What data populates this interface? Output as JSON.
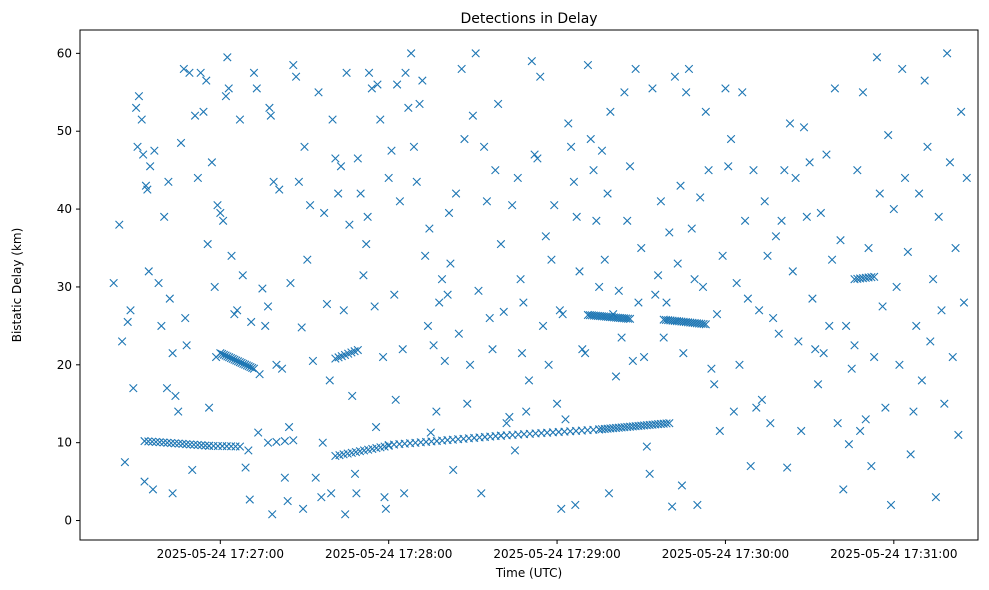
{
  "chart_data": {
    "type": "scatter",
    "title": "Detections in Delay",
    "xlabel": "Time (UTC)",
    "ylabel": "Bistatic Delay (km)",
    "marker": "x",
    "color": "#1f77b4",
    "x_unit": "seconds since 2025-05-24 17:26:00 UTC",
    "xlim": [
      10,
      330
    ],
    "ylim": [
      -2.5,
      63
    ],
    "xticks": [
      {
        "value": 60,
        "label": "2025-05-24 17:27:00"
      },
      {
        "value": 120,
        "label": "2025-05-24 17:28:00"
      },
      {
        "value": 180,
        "label": "2025-05-24 17:29:00"
      },
      {
        "value": 240,
        "label": "2025-05-24 17:30:00"
      },
      {
        "value": 300,
        "label": "2025-05-24 17:31:00"
      }
    ],
    "yticks": [
      0,
      10,
      20,
      30,
      40,
      50,
      60
    ],
    "tracks": [
      {
        "name": "track-1",
        "t_start": 33,
        "t_end": 56,
        "delay_start": 10.2,
        "delay_end": 9.6,
        "count": 18
      },
      {
        "name": "track-2",
        "t_start": 56,
        "t_end": 67,
        "delay_start": 9.6,
        "delay_end": 9.5,
        "count": 8
      },
      {
        "name": "track-3",
        "t_start": 77,
        "t_end": 86,
        "delay_start": 10.0,
        "delay_end": 10.3,
        "count": 4
      },
      {
        "name": "track-4",
        "t_start": 101,
        "t_end": 120,
        "delay_start": 8.3,
        "delay_end": 9.6,
        "count": 14
      },
      {
        "name": "track-5",
        "t_start": 120,
        "t_end": 160,
        "delay_start": 9.7,
        "delay_end": 10.9,
        "count": 22
      },
      {
        "name": "track-6",
        "t_start": 160,
        "t_end": 195,
        "delay_start": 10.9,
        "delay_end": 11.7,
        "count": 18
      },
      {
        "name": "track-7",
        "t_start": 195,
        "t_end": 220,
        "delay_start": 11.7,
        "delay_end": 12.5,
        "count": 26
      },
      {
        "name": "track-8",
        "t_start": 60,
        "t_end": 72,
        "delay_start": 21.5,
        "delay_end": 19.5,
        "count": 20
      },
      {
        "name": "track-9",
        "t_start": 101,
        "t_end": 109,
        "delay_start": 20.8,
        "delay_end": 21.9,
        "count": 8
      },
      {
        "name": "track-10",
        "t_start": 191,
        "t_end": 206,
        "delay_start": 26.4,
        "delay_end": 25.9,
        "count": 22
      },
      {
        "name": "track-11",
        "t_start": 218,
        "t_end": 233,
        "delay_start": 25.8,
        "delay_end": 25.2,
        "count": 20
      },
      {
        "name": "track-12",
        "t_start": 286,
        "t_end": 293,
        "delay_start": 31.0,
        "delay_end": 31.3,
        "count": 8
      }
    ],
    "clutter_points": [
      [
        22,
        30.5
      ],
      [
        24,
        38
      ],
      [
        25,
        23
      ],
      [
        26,
        7.5
      ],
      [
        27,
        25.5
      ],
      [
        28,
        27
      ],
      [
        29,
        17
      ],
      [
        30,
        53
      ],
      [
        30.5,
        48
      ],
      [
        31,
        54.5
      ],
      [
        32,
        51.5
      ],
      [
        32.5,
        47
      ],
      [
        33,
        5
      ],
      [
        33.5,
        43
      ],
      [
        34,
        42.5
      ],
      [
        34.5,
        32
      ],
      [
        35,
        45.5
      ],
      [
        36,
        4
      ],
      [
        36.5,
        47.5
      ],
      [
        38,
        30.5
      ],
      [
        39,
        25
      ],
      [
        40,
        39
      ],
      [
        41,
        17
      ],
      [
        41.5,
        43.5
      ],
      [
        42,
        28.5
      ],
      [
        43,
        3.5
      ],
      [
        43,
        21.5
      ],
      [
        44,
        16
      ],
      [
        45,
        14
      ],
      [
        46,
        48.5
      ],
      [
        47,
        58
      ],
      [
        47.5,
        26
      ],
      [
        48,
        22.5
      ],
      [
        49,
        57.5
      ],
      [
        50,
        6.5
      ],
      [
        51,
        52
      ],
      [
        52,
        44
      ],
      [
        53,
        57.5
      ],
      [
        54,
        52.5
      ],
      [
        55,
        56.5
      ],
      [
        55.5,
        35.5
      ],
      [
        56,
        14.5
      ],
      [
        57,
        46
      ],
      [
        58,
        30
      ],
      [
        58.5,
        21
      ],
      [
        59,
        40.5
      ],
      [
        60,
        39.5
      ],
      [
        61,
        38.5
      ],
      [
        62,
        54.5
      ],
      [
        62.5,
        59.5
      ],
      [
        63,
        55.5
      ],
      [
        64,
        34
      ],
      [
        65,
        26.5
      ],
      [
        66,
        27
      ],
      [
        67,
        51.5
      ],
      [
        68,
        31.5
      ],
      [
        69,
        6.8
      ],
      [
        70,
        9
      ],
      [
        70.5,
        2.7
      ],
      [
        71,
        25.5
      ],
      [
        72,
        57.5
      ],
      [
        73,
        55.5
      ],
      [
        73.5,
        11.3
      ],
      [
        74,
        18.8
      ],
      [
        75,
        29.8
      ],
      [
        76,
        25
      ],
      [
        77,
        27.5
      ],
      [
        77.5,
        53
      ],
      [
        78,
        52
      ],
      [
        78.5,
        0.8
      ],
      [
        79,
        43.5
      ],
      [
        80,
        20
      ],
      [
        81,
        42.5
      ],
      [
        82,
        19.5
      ],
      [
        83,
        5.5
      ],
      [
        84,
        2.5
      ],
      [
        84.5,
        12
      ],
      [
        85,
        30.5
      ],
      [
        86,
        58.5
      ],
      [
        87,
        57
      ],
      [
        88,
        43.5
      ],
      [
        89,
        24.8
      ],
      [
        89.5,
        1.5
      ],
      [
        90,
        48
      ],
      [
        91,
        33.5
      ],
      [
        92,
        40.5
      ],
      [
        93,
        20.5
      ],
      [
        94,
        5.5
      ],
      [
        95,
        55
      ],
      [
        96,
        3
      ],
      [
        96.5,
        10
      ],
      [
        97,
        39.5
      ],
      [
        98,
        27.8
      ],
      [
        99,
        18
      ],
      [
        99.5,
        3.5
      ],
      [
        100,
        51.5
      ],
      [
        101,
        46.5
      ],
      [
        102,
        42
      ],
      [
        103,
        45.5
      ],
      [
        104,
        27
      ],
      [
        104.5,
        0.8
      ],
      [
        105,
        57.5
      ],
      [
        106,
        38
      ],
      [
        107,
        16
      ],
      [
        108,
        6
      ],
      [
        108.5,
        3.5
      ],
      [
        109,
        46.5
      ],
      [
        110,
        42
      ],
      [
        111,
        31.5
      ],
      [
        112,
        35.5
      ],
      [
        112.5,
        39
      ],
      [
        113,
        57.5
      ],
      [
        114,
        55.5
      ],
      [
        115,
        27.5
      ],
      [
        115.5,
        12
      ],
      [
        116,
        56
      ],
      [
        117,
        51.5
      ],
      [
        118,
        21
      ],
      [
        118.5,
        3
      ],
      [
        119,
        1.5
      ],
      [
        120,
        44
      ],
      [
        121,
        47.5
      ],
      [
        122,
        29
      ],
      [
        122.5,
        15.5
      ],
      [
        123,
        56
      ],
      [
        124,
        41
      ],
      [
        125,
        22
      ],
      [
        125.5,
        3.5
      ],
      [
        126,
        57.5
      ],
      [
        127,
        53
      ],
      [
        128,
        60
      ],
      [
        129,
        48
      ],
      [
        130,
        43.5
      ],
      [
        131,
        53.5
      ],
      [
        132,
        56.5
      ],
      [
        133,
        34
      ],
      [
        134,
        25
      ],
      [
        134.5,
        37.5
      ],
      [
        135,
        11.3
      ],
      [
        136,
        22.5
      ],
      [
        137,
        14
      ],
      [
        138,
        28
      ],
      [
        139,
        31
      ],
      [
        140,
        20.5
      ],
      [
        141,
        29
      ],
      [
        141.5,
        39.5
      ],
      [
        142,
        33
      ],
      [
        143,
        6.5
      ],
      [
        144,
        42
      ],
      [
        145,
        24
      ],
      [
        146,
        58
      ],
      [
        147,
        49
      ],
      [
        148,
        15
      ],
      [
        149,
        20
      ],
      [
        150,
        52
      ],
      [
        151,
        60
      ],
      [
        152,
        29.5
      ],
      [
        153,
        3.5
      ],
      [
        154,
        48
      ],
      [
        155,
        41
      ],
      [
        156,
        26
      ],
      [
        157,
        22
      ],
      [
        158,
        45
      ],
      [
        159,
        53.5
      ],
      [
        160,
        35.5
      ],
      [
        161,
        26.8
      ],
      [
        162,
        12.5
      ],
      [
        163,
        13.3
      ],
      [
        164,
        40.5
      ],
      [
        165,
        9
      ],
      [
        166,
        44
      ],
      [
        167,
        31
      ],
      [
        167.5,
        21.5
      ],
      [
        168,
        28
      ],
      [
        169,
        14
      ],
      [
        170,
        18
      ],
      [
        171,
        59
      ],
      [
        172,
        47
      ],
      [
        173,
        46.5
      ],
      [
        174,
        57
      ],
      [
        175,
        25
      ],
      [
        176,
        36.5
      ],
      [
        177,
        20
      ],
      [
        178,
        33.5
      ],
      [
        179,
        40.5
      ],
      [
        180,
        15
      ],
      [
        181,
        27
      ],
      [
        181.5,
        1.5
      ],
      [
        182,
        26.5
      ],
      [
        183,
        13
      ],
      [
        184,
        51
      ],
      [
        185,
        48
      ],
      [
        186,
        43.5
      ],
      [
        186.5,
        2
      ],
      [
        187,
        39
      ],
      [
        188,
        32
      ],
      [
        189,
        22
      ],
      [
        190,
        21.5
      ],
      [
        191,
        58.5
      ],
      [
        192,
        49
      ],
      [
        193,
        45
      ],
      [
        194,
        38.5
      ],
      [
        195,
        30
      ],
      [
        196,
        47.5
      ],
      [
        197,
        33.5
      ],
      [
        198,
        42
      ],
      [
        198.5,
        3.5
      ],
      [
        199,
        52.5
      ],
      [
        200,
        26.5
      ],
      [
        201,
        18.5
      ],
      [
        202,
        29.5
      ],
      [
        203,
        23.5
      ],
      [
        204,
        55
      ],
      [
        205,
        38.5
      ],
      [
        206,
        45.5
      ],
      [
        207,
        20.5
      ],
      [
        208,
        58
      ],
      [
        209,
        28
      ],
      [
        210,
        35
      ],
      [
        211,
        21
      ],
      [
        212,
        9.5
      ],
      [
        213,
        6
      ],
      [
        214,
        55.5
      ],
      [
        215,
        29
      ],
      [
        216,
        31.5
      ],
      [
        217,
        41
      ],
      [
        218,
        23.5
      ],
      [
        219,
        28
      ],
      [
        220,
        37
      ],
      [
        221,
        1.8
      ],
      [
        222,
        57
      ],
      [
        223,
        33
      ],
      [
        224,
        43
      ],
      [
        224.5,
        4.5
      ],
      [
        225,
        21.5
      ],
      [
        226,
        55
      ],
      [
        227,
        58
      ],
      [
        228,
        37.5
      ],
      [
        229,
        31
      ],
      [
        230,
        2
      ],
      [
        231,
        41.5
      ],
      [
        232,
        30
      ],
      [
        233,
        52.5
      ],
      [
        234,
        45
      ],
      [
        235,
        19.5
      ],
      [
        236,
        17.5
      ],
      [
        237,
        26.5
      ],
      [
        238,
        11.5
      ],
      [
        239,
        34
      ],
      [
        240,
        55.5
      ],
      [
        241,
        45.5
      ],
      [
        242,
        49
      ],
      [
        243,
        14
      ],
      [
        244,
        30.5
      ],
      [
        245,
        20
      ],
      [
        246,
        55
      ],
      [
        247,
        38.5
      ],
      [
        248,
        28.5
      ],
      [
        249,
        7
      ],
      [
        250,
        45
      ],
      [
        251,
        14.5
      ],
      [
        252,
        27
      ],
      [
        253,
        15.5
      ],
      [
        254,
        41
      ],
      [
        255,
        34
      ],
      [
        256,
        12.5
      ],
      [
        257,
        26
      ],
      [
        258,
        36.5
      ],
      [
        259,
        24
      ],
      [
        260,
        38.5
      ],
      [
        261,
        45
      ],
      [
        262,
        6.8
      ],
      [
        263,
        51
      ],
      [
        264,
        32
      ],
      [
        265,
        44
      ],
      [
        266,
        23
      ],
      [
        267,
        11.5
      ],
      [
        268,
        50.5
      ],
      [
        269,
        39
      ],
      [
        270,
        46
      ],
      [
        271,
        28.5
      ],
      [
        272,
        22
      ],
      [
        273,
        17.5
      ],
      [
        274,
        39.5
      ],
      [
        275,
        21.5
      ],
      [
        276,
        47
      ],
      [
        277,
        25
      ],
      [
        278,
        33.5
      ],
      [
        279,
        55.5
      ],
      [
        280,
        12.5
      ],
      [
        281,
        36
      ],
      [
        282,
        4
      ],
      [
        283,
        25
      ],
      [
        284,
        9.8
      ],
      [
        285,
        19.5
      ],
      [
        286,
        22.5
      ],
      [
        287,
        45
      ],
      [
        288,
        11.5
      ],
      [
        289,
        55
      ],
      [
        290,
        13
      ],
      [
        291,
        35
      ],
      [
        292,
        7
      ],
      [
        293,
        21
      ],
      [
        294,
        59.5
      ],
      [
        295,
        42
      ],
      [
        296,
        27.5
      ],
      [
        297,
        14.5
      ],
      [
        298,
        49.5
      ],
      [
        299,
        2
      ],
      [
        300,
        40
      ],
      [
        301,
        30
      ],
      [
        302,
        20
      ],
      [
        303,
        58
      ],
      [
        304,
        44
      ],
      [
        305,
        34.5
      ],
      [
        306,
        8.5
      ],
      [
        307,
        14
      ],
      [
        308,
        25
      ],
      [
        309,
        42
      ],
      [
        310,
        18
      ],
      [
        311,
        56.5
      ],
      [
        312,
        48
      ],
      [
        313,
        23
      ],
      [
        314,
        31
      ],
      [
        315,
        3
      ],
      [
        316,
        39
      ],
      [
        317,
        27
      ],
      [
        318,
        15
      ],
      [
        319,
        60
      ],
      [
        320,
        46
      ],
      [
        321,
        21
      ],
      [
        322,
        35
      ],
      [
        323,
        11
      ],
      [
        324,
        52.5
      ],
      [
        325,
        28
      ],
      [
        326,
        44
      ]
    ]
  }
}
